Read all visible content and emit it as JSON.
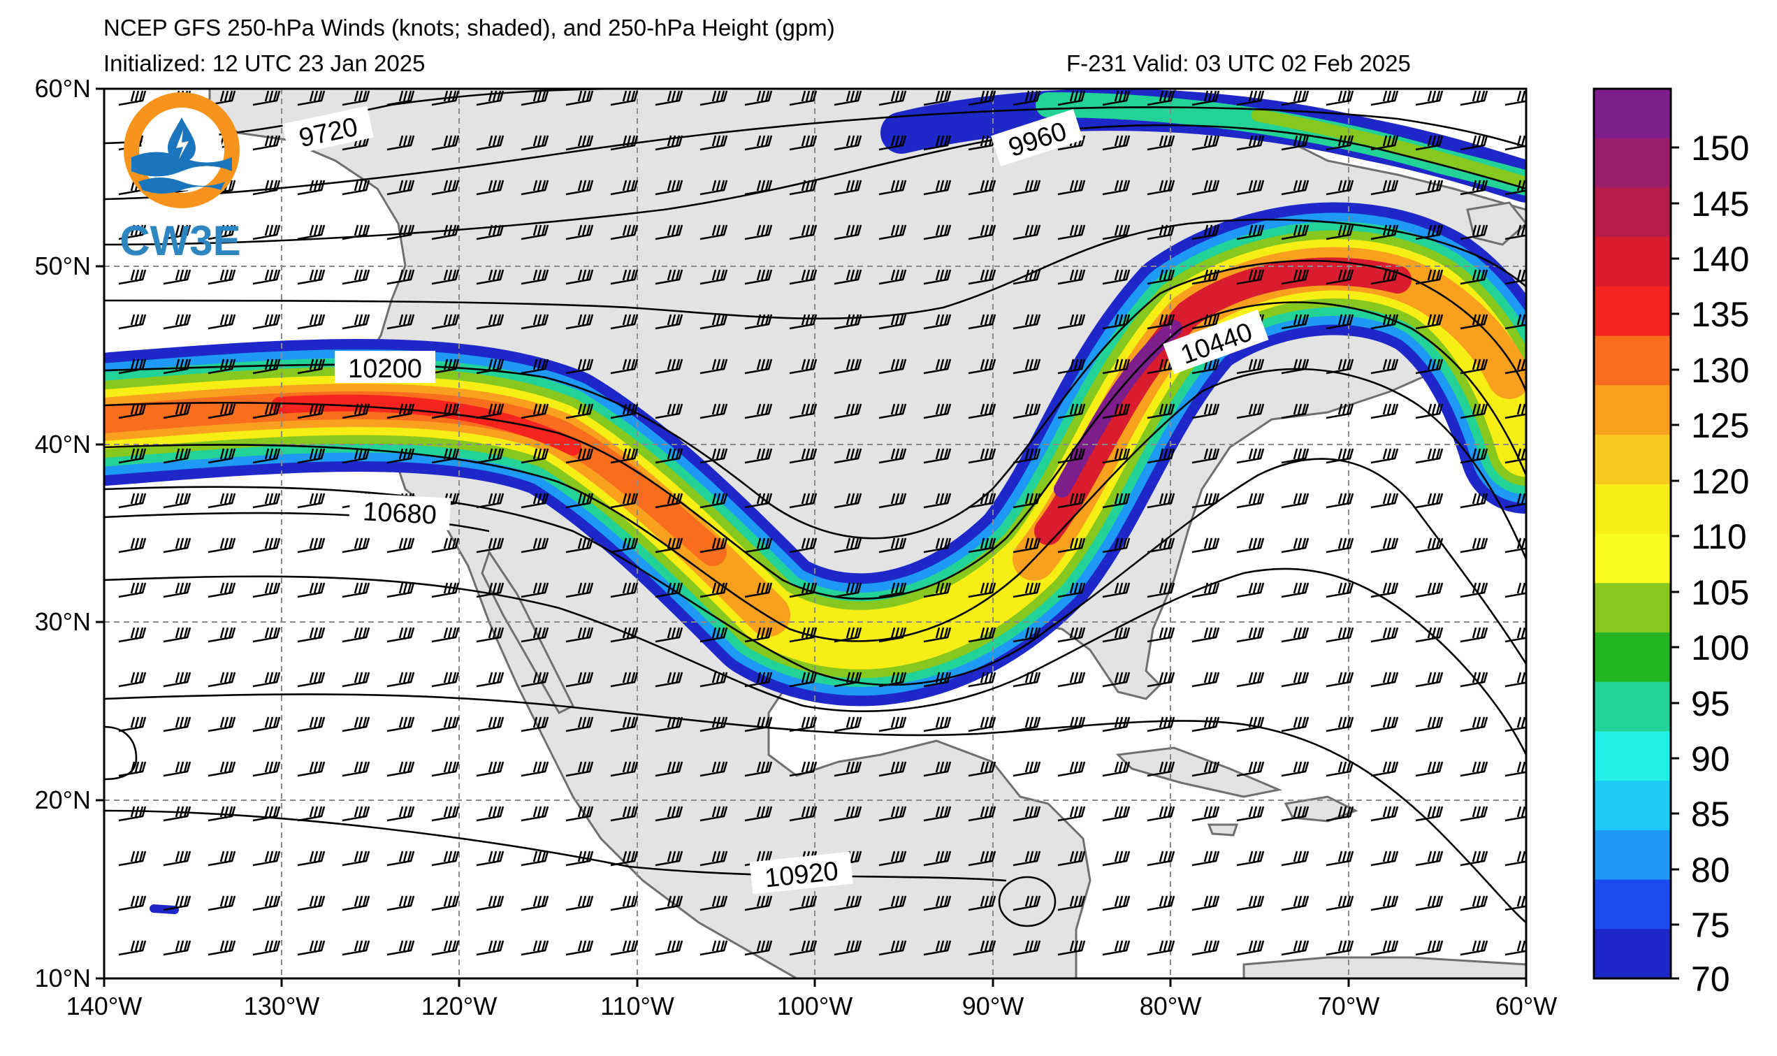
{
  "header": {
    "title": "NCEP GFS 250-hPa Winds (knots; shaded), and 250-hPa Height (gpm)",
    "initialized": "Initialized: 12 UTC 23 Jan 2025",
    "valid": "F-231  Valid: 03 UTC 02 Feb 2025"
  },
  "logo": {
    "text": "CW3E",
    "ring_color": "#f7941d",
    "wave_color": "#1b75bc"
  },
  "axes": {
    "lon_ticks": [
      "140°W",
      "130°W",
      "120°W",
      "110°W",
      "100°W",
      "90°W",
      "80°W",
      "70°W",
      "60°W"
    ],
    "lat_ticks": [
      "60°N",
      "50°N",
      "40°N",
      "30°N",
      "20°N",
      "10°N"
    ],
    "lon_range": [
      -140,
      -60
    ],
    "lat_range": [
      10,
      60
    ]
  },
  "colorbar": {
    "labels": [
      "150",
      "145",
      "140",
      "135",
      "130",
      "125",
      "120",
      "110",
      "105",
      "100",
      "95",
      "90",
      "85",
      "80",
      "75",
      "70"
    ],
    "colors": [
      "#7d1e8c",
      "#9b1e6e",
      "#b81c4a",
      "#d91c2e",
      "#f5241e",
      "#f96e1e",
      "#f9a11e",
      "#f9c81e",
      "#f6ee15",
      "#fafb1e",
      "#86c81e",
      "#22b422",
      "#22d296",
      "#22f0e6",
      "#1ecbf6",
      "#1e9af6",
      "#1e4bf0",
      "#1e28c8"
    ]
  },
  "contour_labels": [
    {
      "text": "9720"
    },
    {
      "text": "9960"
    },
    {
      "text": "10200"
    },
    {
      "text": "10440"
    },
    {
      "text": "10680"
    },
    {
      "text": "10920"
    }
  ]
}
